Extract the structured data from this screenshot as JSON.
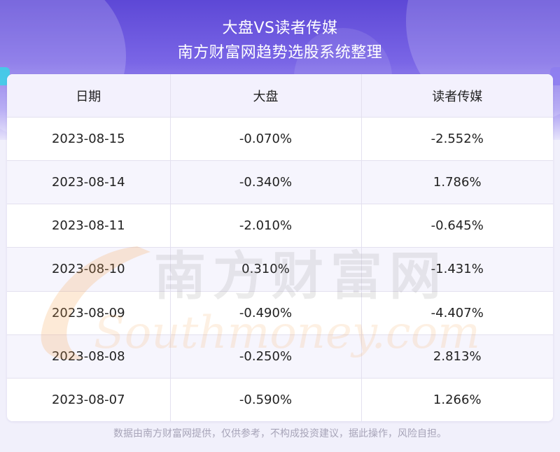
{
  "header": {
    "title": "大盘VS读者传媒",
    "subtitle": "南方财富网趋势选股系统整理"
  },
  "table": {
    "columns": [
      "日期",
      "大盘",
      "读者传媒"
    ],
    "rows": [
      [
        "2023-08-15",
        "-0.070%",
        "-2.552%"
      ],
      [
        "2023-08-14",
        "-0.340%",
        "1.786%"
      ],
      [
        "2023-08-11",
        "-2.010%",
        "-0.645%"
      ],
      [
        "2023-08-10",
        "0.310%",
        "-1.431%"
      ],
      [
        "2023-08-09",
        "-0.490%",
        "-4.407%"
      ],
      [
        "2023-08-08",
        "-0.250%",
        "2.813%"
      ],
      [
        "2023-08-07",
        "-0.590%",
        "1.266%"
      ]
    ]
  },
  "watermark": {
    "cn": "南方财富网",
    "en": "Southmoney.com"
  },
  "footer": {
    "disclaimer": "数据由南方财富网提供，仅供参考，不构成投资建议，据此操作，风险自担。"
  },
  "colors": {
    "header_gradient_top": "#5d48d6",
    "header_row_bg": "#f3f1fd",
    "watermark_orange": "#f6a04a",
    "watermark_gray": "#8a8a8a"
  }
}
